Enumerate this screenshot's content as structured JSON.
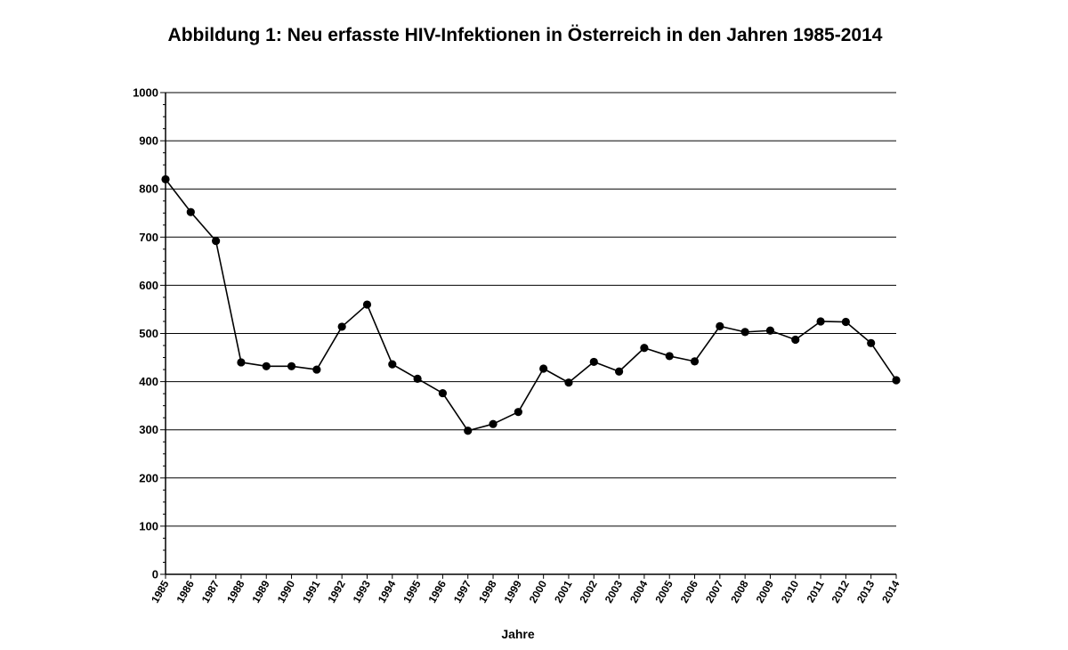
{
  "chart_data": {
    "type": "line",
    "title": "Abbildung 1: Neu erfasste HIV-Infektionen in Österreich in den Jahren 1985-2014",
    "xlabel": "Jahre",
    "ylabel": "",
    "ylim": [
      0,
      1000
    ],
    "yticks": [
      "0",
      "100",
      "200",
      "300",
      "400",
      "500",
      "600",
      "700",
      "800",
      "900",
      "1000"
    ],
    "categories": [
      "1985",
      "1986",
      "1987",
      "1988",
      "1989",
      "1990",
      "1991",
      "1992",
      "1993",
      "1994",
      "1995",
      "1996",
      "1997",
      "1998",
      "1999",
      "2000",
      "2001",
      "2002",
      "2003",
      "2004",
      "2005",
      "2006",
      "2007",
      "2008",
      "2009",
      "2010",
      "2011",
      "2012",
      "2013",
      "2014"
    ],
    "series": [
      {
        "values": [
          820,
          752,
          692,
          440,
          432,
          432,
          425,
          514,
          560,
          436,
          406,
          376,
          298,
          312,
          337,
          427,
          398,
          441,
          421,
          470,
          453,
          442,
          515,
          503,
          506,
          487,
          525,
          524,
          480,
          403
        ]
      }
    ],
    "grid": true,
    "legend": "none",
    "colors": {
      "line": "#000000",
      "marker": "#000000",
      "grid": "#000000"
    }
  }
}
